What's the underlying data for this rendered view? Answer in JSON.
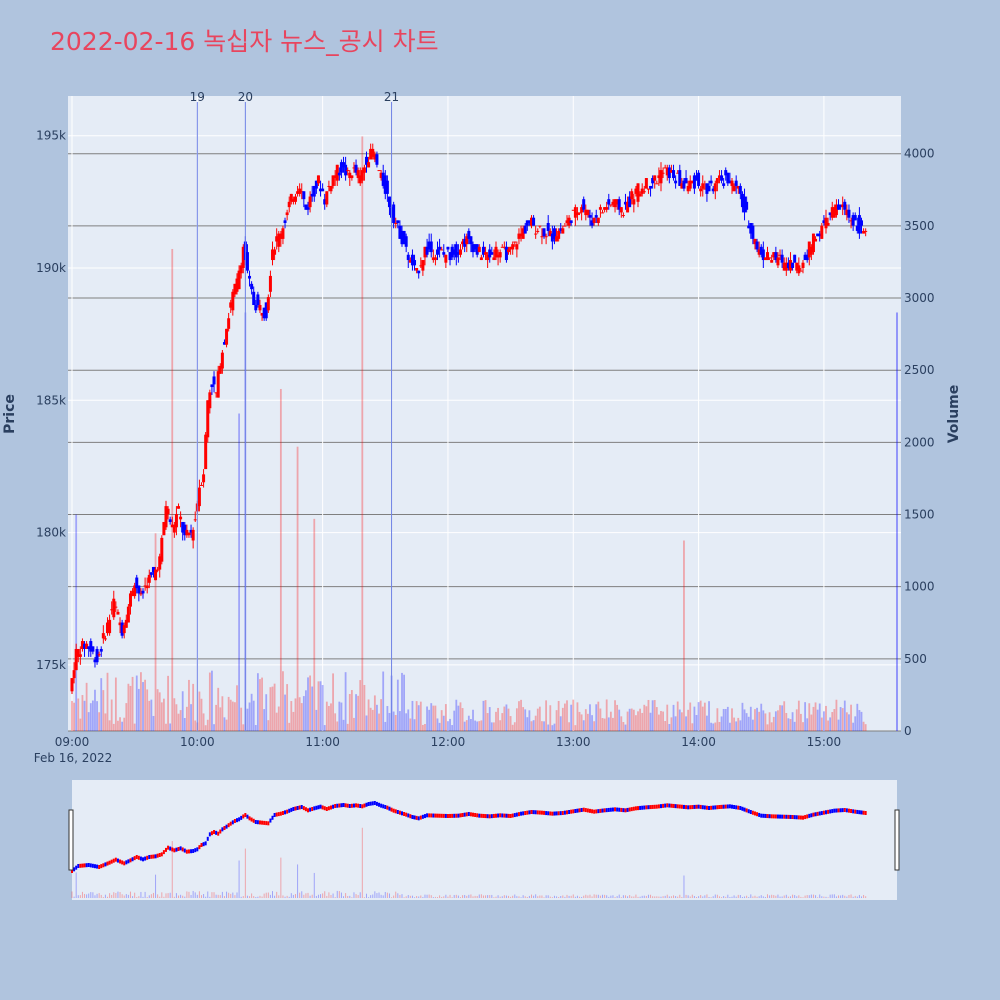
{
  "chart_data": {
    "type": "candlestick",
    "title": "2022-02-16 녹십자 뉴스_공시 차트",
    "date_label": "Feb 16, 2022",
    "ylabel": "Price",
    "y2label": "Volume",
    "price_ylim": [
      172500,
      196500
    ],
    "volume_ylim": [
      0,
      4400
    ],
    "price_ticks": [
      175000,
      180000,
      185000,
      190000,
      195000
    ],
    "price_tick_labels": [
      "175k",
      "180k",
      "185k",
      "190k",
      "195k"
    ],
    "volume_ticks": [
      0,
      500,
      1000,
      1500,
      2000,
      2500,
      3000,
      3500,
      4000
    ],
    "volume_tick_labels": [
      "0",
      "500",
      "1000",
      "1500",
      "2000",
      "2500",
      "3000",
      "3500",
      "4000"
    ],
    "x_ticks": [
      "09:00",
      "10:00",
      "11:00",
      "12:00",
      "13:00",
      "14:00",
      "15:00"
    ],
    "x_tick_minutes": [
      0,
      60,
      120,
      180,
      240,
      300,
      360
    ],
    "x_range_minutes": [
      0,
      395
    ],
    "events": [
      {
        "label": "19",
        "minute": 60
      },
      {
        "label": "20",
        "minute": 83
      },
      {
        "label": "21",
        "minute": 153
      }
    ],
    "colors": {
      "up": "#ff0000",
      "down": "#0000ff",
      "event_line": "#6f82e6",
      "title": "#e8455e"
    },
    "price_path": [
      [
        0,
        174000
      ],
      [
        3,
        175500
      ],
      [
        8,
        175800
      ],
      [
        13,
        175200
      ],
      [
        18,
        176500
      ],
      [
        21,
        177400
      ],
      [
        25,
        176300
      ],
      [
        28,
        177200
      ],
      [
        31,
        178200
      ],
      [
        34,
        177500
      ],
      [
        37,
        178200
      ],
      [
        40,
        178400
      ],
      [
        43,
        179000
      ],
      [
        46,
        181000
      ],
      [
        49,
        180200
      ],
      [
        52,
        180800
      ],
      [
        55,
        179800
      ],
      [
        58,
        180000
      ],
      [
        60,
        180500
      ],
      [
        62,
        181800
      ],
      [
        64,
        182300
      ],
      [
        66,
        185000
      ],
      [
        68,
        185700
      ],
      [
        70,
        185200
      ],
      [
        72,
        186500
      ],
      [
        74,
        187300
      ],
      [
        76,
        188200
      ],
      [
        78,
        189000
      ],
      [
        80,
        189500
      ],
      [
        83,
        190800
      ],
      [
        85,
        189800
      ],
      [
        88,
        188700
      ],
      [
        91,
        188500
      ],
      [
        94,
        188300
      ],
      [
        97,
        190800
      ],
      [
        100,
        191200
      ],
      [
        103,
        191800
      ],
      [
        106,
        192600
      ],
      [
        110,
        193200
      ],
      [
        113,
        192200
      ],
      [
        116,
        192800
      ],
      [
        119,
        193300
      ],
      [
        122,
        192600
      ],
      [
        126,
        193500
      ],
      [
        130,
        193800
      ],
      [
        133,
        193500
      ],
      [
        136,
        193700
      ],
      [
        139,
        193400
      ],
      [
        142,
        194100
      ],
      [
        145,
        194400
      ],
      [
        148,
        193600
      ],
      [
        151,
        193000
      ],
      [
        154,
        192100
      ],
      [
        157,
        191500
      ],
      [
        160,
        190900
      ],
      [
        163,
        190200
      ],
      [
        166,
        189800
      ],
      [
        170,
        190700
      ],
      [
        175,
        190600
      ],
      [
        180,
        190500
      ],
      [
        185,
        190600
      ],
      [
        190,
        191100
      ],
      [
        195,
        190600
      ],
      [
        200,
        190400
      ],
      [
        205,
        190700
      ],
      [
        210,
        190500
      ],
      [
        215,
        191200
      ],
      [
        220,
        191700
      ],
      [
        225,
        191500
      ],
      [
        230,
        191200
      ],
      [
        235,
        191400
      ],
      [
        240,
        191900
      ],
      [
        245,
        192400
      ],
      [
        250,
        191800
      ],
      [
        255,
        192200
      ],
      [
        260,
        192500
      ],
      [
        265,
        192200
      ],
      [
        270,
        192800
      ],
      [
        275,
        193100
      ],
      [
        280,
        193300
      ],
      [
        285,
        193700
      ],
      [
        290,
        193400
      ],
      [
        295,
        193100
      ],
      [
        300,
        193300
      ],
      [
        305,
        192900
      ],
      [
        310,
        193200
      ],
      [
        315,
        193400
      ],
      [
        320,
        192900
      ],
      [
        325,
        191700
      ],
      [
        330,
        190600
      ],
      [
        335,
        190400
      ],
      [
        340,
        190300
      ],
      [
        345,
        190200
      ],
      [
        350,
        190000
      ],
      [
        355,
        190900
      ],
      [
        360,
        191500
      ],
      [
        365,
        192100
      ],
      [
        370,
        192300
      ],
      [
        375,
        191800
      ],
      [
        380,
        191400
      ]
    ],
    "volume_spikes": [
      {
        "minute": 2,
        "volume": 1500,
        "dir": "down"
      },
      {
        "minute": 40,
        "volume": 1370,
        "dir": "up"
      },
      {
        "minute": 48,
        "volume": 3340,
        "dir": "up"
      },
      {
        "minute": 83,
        "volume": 2900,
        "dir": "down"
      },
      {
        "minute": 80,
        "volume": 2200,
        "dir": "down"
      },
      {
        "minute": 100,
        "volume": 2370,
        "dir": "up"
      },
      {
        "minute": 108,
        "volume": 1970,
        "dir": "up"
      },
      {
        "minute": 116,
        "volume": 1470,
        "dir": "up"
      },
      {
        "minute": 139,
        "volume": 4120,
        "dir": "up"
      },
      {
        "minute": 293,
        "volume": 1320,
        "dir": "up"
      },
      {
        "minute": 395,
        "volume": 2900,
        "dir": "down"
      }
    ],
    "rangeslider": true
  }
}
